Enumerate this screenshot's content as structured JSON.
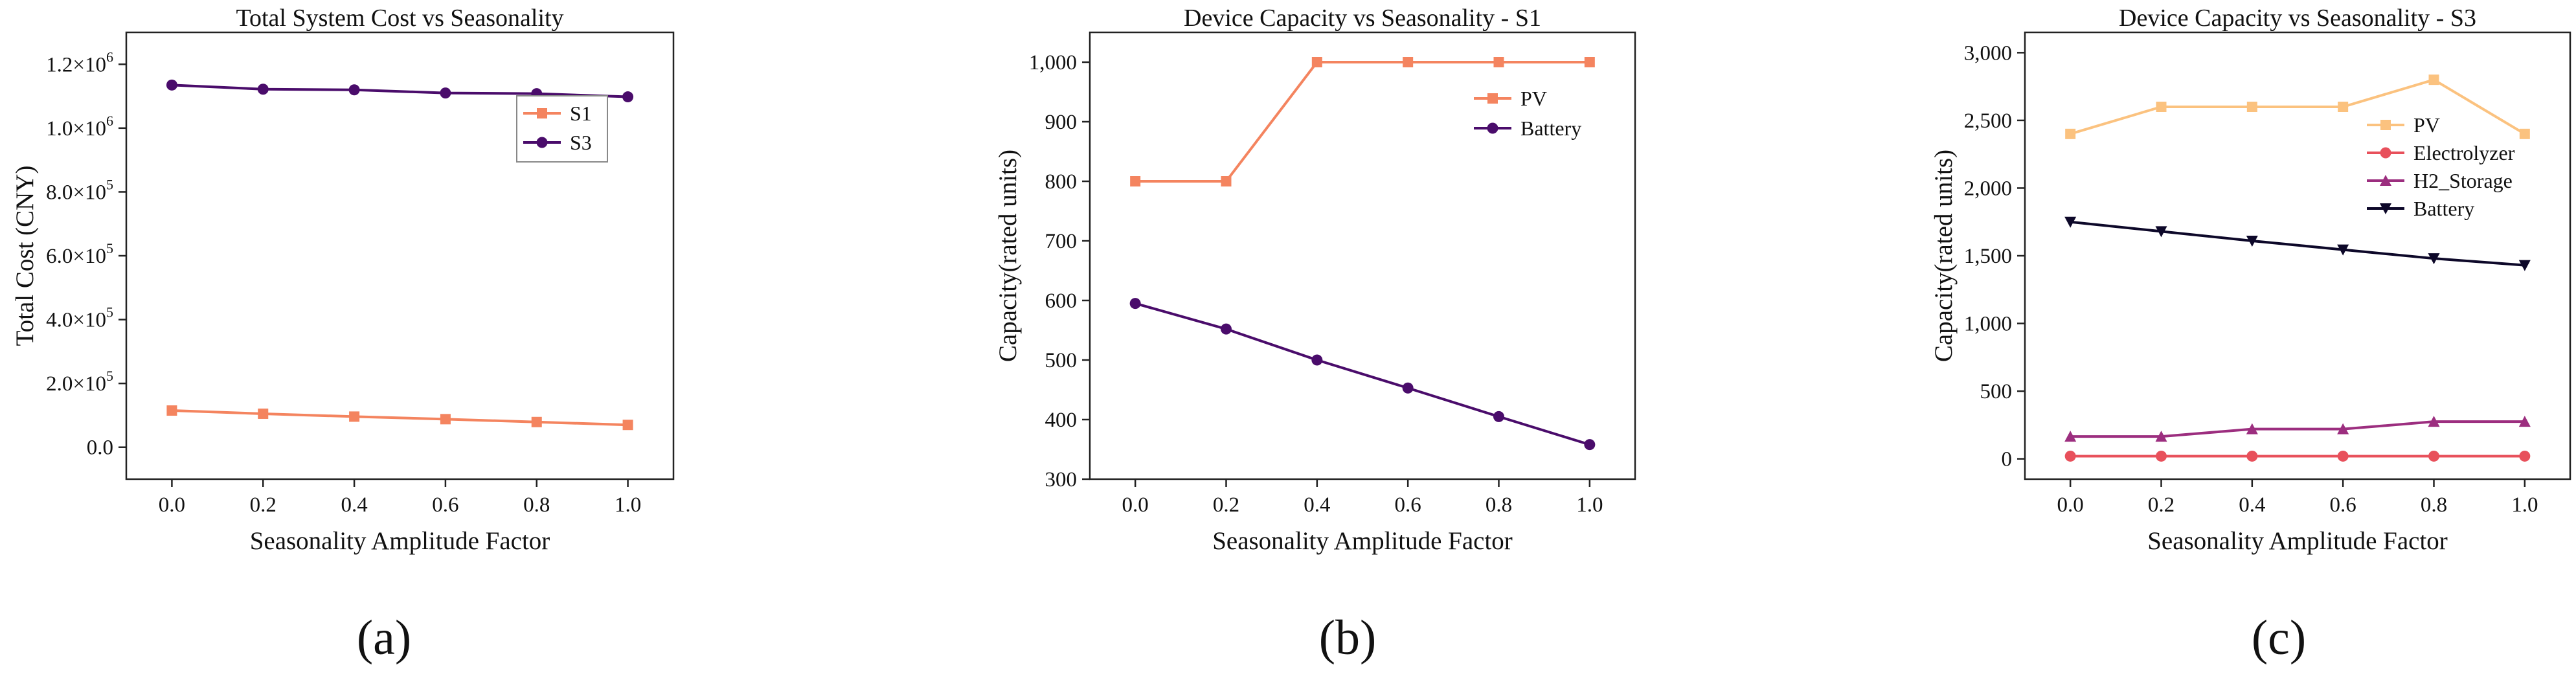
{
  "figure": {
    "panel_labels": [
      "(a)",
      "(b)",
      "(c)"
    ]
  },
  "chart_data": [
    {
      "type": "line",
      "title": "Total System Cost vs Seasonality",
      "xlabel": "Seasonality Amplitude Factor",
      "ylabel": "Total Cost (CNY)",
      "x": [
        0.0,
        0.2,
        0.4,
        0.6,
        0.8,
        1.0
      ],
      "xlim": [
        -0.1,
        1.1
      ],
      "ylim": [
        -100000,
        1300000
      ],
      "xticks": [
        0.0,
        0.2,
        0.4,
        0.6,
        0.8,
        1.0
      ],
      "xtick_labels": [
        "0.0",
        "0.2",
        "0.4",
        "0.6",
        "0.8",
        "1.0"
      ],
      "yticks": [
        0,
        200000,
        400000,
        600000,
        800000,
        1000000,
        1200000
      ],
      "ytick_labels": [
        {
          "mantissa": "0.0",
          "exp": ""
        },
        {
          "mantissa": "2.0×10",
          "exp": "5"
        },
        {
          "mantissa": "4.0×10",
          "exp": "5"
        },
        {
          "mantissa": "6.0×10",
          "exp": "5"
        },
        {
          "mantissa": "8.0×10",
          "exp": "5"
        },
        {
          "mantissa": "1.0×10",
          "exp": "6"
        },
        {
          "mantissa": "1.2×10",
          "exp": "6"
        }
      ],
      "legend_position": "upper-right",
      "legend_framed": true,
      "series": [
        {
          "name": "S1",
          "color": "#f4845f",
          "marker": "square",
          "values": [
            115000,
            105000,
            96000,
            88000,
            79000,
            70000
          ]
        },
        {
          "name": "S3",
          "color": "#4a0c6b",
          "marker": "circle",
          "values": [
            1135000,
            1122000,
            1120000,
            1110000,
            1108000,
            1098000
          ]
        }
      ]
    },
    {
      "type": "line",
      "title": "Device Capacity vs Seasonality - S1",
      "xlabel": "Seasonality Amplitude Factor",
      "ylabel": "Capacity(rated units)",
      "x": [
        0.0,
        0.2,
        0.4,
        0.6,
        0.8,
        1.0
      ],
      "xlim": [
        -0.1,
        1.1
      ],
      "ylim": [
        300,
        1050
      ],
      "xticks": [
        0.0,
        0.2,
        0.4,
        0.6,
        0.8,
        1.0
      ],
      "xtick_labels": [
        "0.0",
        "0.2",
        "0.4",
        "0.6",
        "0.8",
        "1.0"
      ],
      "yticks": [
        300,
        400,
        500,
        600,
        700,
        800,
        900,
        1000
      ],
      "ytick_labels": [
        {
          "mantissa": "300",
          "exp": ""
        },
        {
          "mantissa": "400",
          "exp": ""
        },
        {
          "mantissa": "500",
          "exp": ""
        },
        {
          "mantissa": "600",
          "exp": ""
        },
        {
          "mantissa": "700",
          "exp": ""
        },
        {
          "mantissa": "800",
          "exp": ""
        },
        {
          "mantissa": "900",
          "exp": ""
        },
        {
          "mantissa": "1,000",
          "exp": ""
        }
      ],
      "legend_position": "upper-right",
      "legend_framed": false,
      "series": [
        {
          "name": "PV",
          "color": "#f4845f",
          "marker": "square",
          "values": [
            800,
            800,
            1000,
            1000,
            1000,
            1000
          ]
        },
        {
          "name": "Battery",
          "color": "#4a0c6b",
          "marker": "circle",
          "values": [
            595,
            552,
            500,
            453,
            405,
            358
          ]
        }
      ]
    },
    {
      "type": "line",
      "title": "Device Capacity vs Seasonality - S3",
      "xlabel": "Seasonality Amplitude Factor",
      "ylabel": "Capacity(rated units)",
      "x": [
        0.0,
        0.2,
        0.4,
        0.6,
        0.8,
        1.0
      ],
      "xlim": [
        -0.1,
        1.1
      ],
      "ylim": [
        -150,
        3150
      ],
      "xticks": [
        0.0,
        0.2,
        0.4,
        0.6,
        0.8,
        1.0
      ],
      "xtick_labels": [
        "0.0",
        "0.2",
        "0.4",
        "0.6",
        "0.8",
        "1.0"
      ],
      "yticks": [
        0,
        500,
        1000,
        1500,
        2000,
        2500,
        3000
      ],
      "ytick_labels": [
        {
          "mantissa": "0",
          "exp": ""
        },
        {
          "mantissa": "500",
          "exp": ""
        },
        {
          "mantissa": "1,000",
          "exp": ""
        },
        {
          "mantissa": "1,500",
          "exp": ""
        },
        {
          "mantissa": "2,000",
          "exp": ""
        },
        {
          "mantissa": "2,500",
          "exp": ""
        },
        {
          "mantissa": "3,000",
          "exp": ""
        }
      ],
      "legend_position": "upper-right",
      "legend_framed": false,
      "series": [
        {
          "name": "PV",
          "color": "#fbc27f",
          "marker": "square",
          "values": [
            2400,
            2600,
            2600,
            2600,
            2800,
            2400
          ]
        },
        {
          "name": "Electrolyzer",
          "color": "#e8505b",
          "marker": "circle",
          "values": [
            20,
            20,
            20,
            20,
            20,
            20
          ]
        },
        {
          "name": "H2_Storage",
          "color": "#9c2e7f",
          "marker": "triangle-up",
          "values": [
            165,
            165,
            220,
            220,
            275,
            275
          ]
        },
        {
          "name": "Battery",
          "color": "#0d0829",
          "marker": "triangle-down",
          "values": [
            1750,
            1680,
            1610,
            1545,
            1480,
            1430
          ]
        }
      ]
    }
  ]
}
